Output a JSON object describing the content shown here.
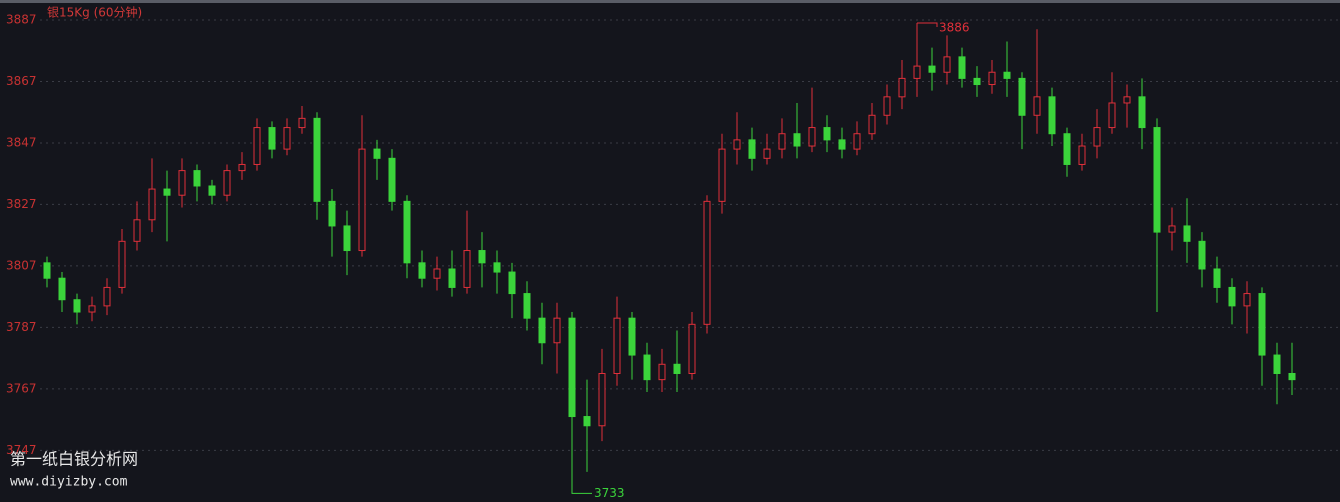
{
  "chart_data": {
    "type": "candlestick",
    "title": "银15Kg  (60分钟)",
    "open": [
      3808,
      3803,
      3796,
      3792,
      3794,
      3800,
      3815,
      3822,
      3832,
      3830,
      3838,
      3833,
      3830,
      3838,
      3840,
      3852,
      3845,
      3852,
      3855,
      3828,
      3820,
      3812,
      3845,
      3842,
      3828,
      3808,
      3803,
      3806,
      3800,
      3812,
      3808,
      3805,
      3798,
      3790,
      3782,
      3790,
      3758,
      3755,
      3772,
      3790,
      3778,
      3770,
      3775,
      3772,
      3788,
      3828,
      3845,
      3848,
      3842,
      3845,
      3850,
      3846,
      3852,
      3848,
      3845,
      3850,
      3856,
      3862,
      3868,
      3872,
      3870,
      3875,
      3868,
      3866,
      3870,
      3868,
      3856,
      3862,
      3850,
      3840,
      3846,
      3852,
      3860,
      3862,
      3852,
      3818,
      3820,
      3815,
      3806,
      3800,
      3794,
      3798,
      3778,
      3772
    ],
    "high": [
      3810,
      3805,
      3798,
      3797,
      3803,
      3819,
      3828,
      3842,
      3838,
      3842,
      3840,
      3835,
      3840,
      3844,
      3855,
      3854,
      3855,
      3859,
      3857,
      3832,
      3825,
      3856,
      3848,
      3845,
      3830,
      3812,
      3810,
      3812,
      3825,
      3818,
      3812,
      3808,
      3802,
      3795,
      3795,
      3792,
      3770,
      3780,
      3797,
      3792,
      3782,
      3780,
      3786,
      3792,
      3830,
      3850,
      3857,
      3852,
      3850,
      3855,
      3860,
      3865,
      3856,
      3852,
      3854,
      3860,
      3866,
      3874,
      3886,
      3878,
      3882,
      3878,
      3872,
      3874,
      3880,
      3870,
      3884,
      3865,
      3852,
      3850,
      3858,
      3870,
      3866,
      3868,
      3855,
      3826,
      3829,
      3818,
      3810,
      3803,
      3802,
      3800,
      3782,
      3782
    ],
    "low": [
      3800,
      3792,
      3788,
      3789,
      3791,
      3798,
      3812,
      3818,
      3815,
      3826,
      3828,
      3827,
      3828,
      3835,
      3838,
      3842,
      3843,
      3850,
      3822,
      3810,
      3804,
      3810,
      3835,
      3825,
      3803,
      3800,
      3799,
      3797,
      3798,
      3800,
      3798,
      3790,
      3786,
      3775,
      3772,
      3733,
      3740,
      3750,
      3768,
      3770,
      3766,
      3766,
      3766,
      3770,
      3785,
      3824,
      3840,
      3838,
      3840,
      3842,
      3842,
      3844,
      3844,
      3842,
      3843,
      3848,
      3853,
      3858,
      3862,
      3864,
      3866,
      3865,
      3862,
      3863,
      3862,
      3845,
      3850,
      3846,
      3836,
      3838,
      3842,
      3850,
      3852,
      3845,
      3792,
      3812,
      3808,
      3800,
      3795,
      3788,
      3785,
      3768,
      3762,
      3765
    ],
    "close": [
      3803,
      3796,
      3792,
      3794,
      3800,
      3815,
      3822,
      3832,
      3830,
      3838,
      3833,
      3830,
      3838,
      3840,
      3852,
      3845,
      3852,
      3855,
      3828,
      3820,
      3812,
      3845,
      3842,
      3828,
      3808,
      3803,
      3806,
      3800,
      3812,
      3808,
      3805,
      3798,
      3790,
      3782,
      3790,
      3758,
      3755,
      3772,
      3790,
      3778,
      3770,
      3775,
      3772,
      3788,
      3828,
      3845,
      3848,
      3842,
      3845,
      3850,
      3846,
      3852,
      3848,
      3845,
      3850,
      3856,
      3862,
      3868,
      3872,
      3870,
      3875,
      3868,
      3866,
      3870,
      3868,
      3856,
      3862,
      3850,
      3840,
      3846,
      3852,
      3860,
      3862,
      3852,
      3818,
      3820,
      3815,
      3806,
      3800,
      3794,
      3798,
      3778,
      3772,
      3770
    ],
    "up_color": "#e0303a",
    "down_color": "#3bd43b",
    "flat_color": "#e8e8e8",
    "high_mark": 3886,
    "low_mark": 3733,
    "ylim": [
      3730.2,
      3893.5
    ],
    "yticks": [
      3747,
      3767,
      3787,
      3807,
      3827,
      3847,
      3867,
      3887
    ],
    "grid": true,
    "watermark": [
      "第一纸白银分析网",
      "www.diyizby.com"
    ]
  }
}
